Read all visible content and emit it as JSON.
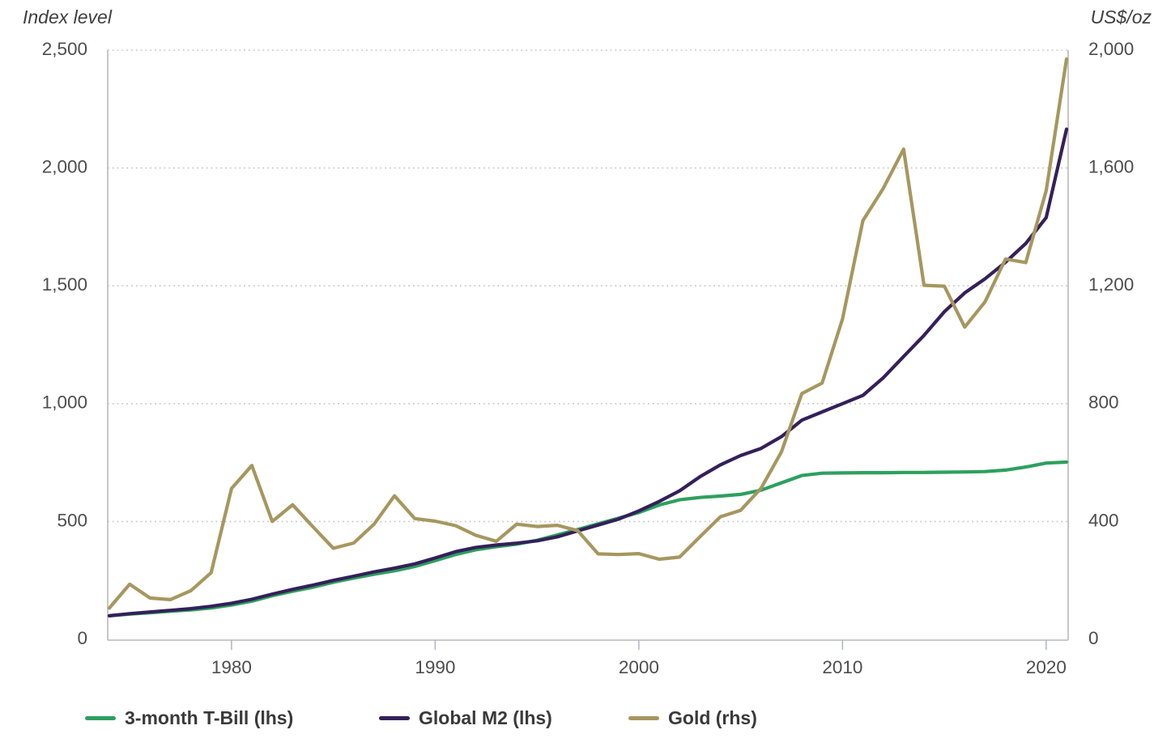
{
  "chart_data": {
    "type": "line",
    "title": "",
    "left_axis": {
      "label": "Index level",
      "min": 0,
      "max": 2500,
      "ticks": [
        {
          "label": "0",
          "value": 0
        },
        {
          "label": "500",
          "value": 500
        },
        {
          "label": "1,000",
          "value": 1000
        },
        {
          "label": "1,500",
          "value": 1500
        },
        {
          "label": "2,000",
          "value": 2000
        },
        {
          "label": "2,500",
          "value": 2500
        }
      ]
    },
    "right_axis": {
      "label": "US$/oz",
      "min": 0,
      "max": 2000,
      "ticks": [
        {
          "label": "0",
          "value": 0
        },
        {
          "label": "400",
          "value": 400
        },
        {
          "label": "800",
          "value": 800
        },
        {
          "label": "1,200",
          "value": 1200
        },
        {
          "label": "1,600",
          "value": 1600
        },
        {
          "label": "2,000",
          "value": 2000
        }
      ]
    },
    "x_axis": {
      "tick_labels": [
        {
          "label": "1980",
          "year": 1980
        },
        {
          "label": "1990",
          "year": 1990
        },
        {
          "label": "2000",
          "year": 2000
        },
        {
          "label": "2010",
          "year": 2010
        },
        {
          "label": "2020",
          "year": 2020
        }
      ],
      "grid": false
    },
    "years": [
      1973,
      1974,
      1975,
      1976,
      1977,
      1978,
      1979,
      1980,
      1981,
      1982,
      1983,
      1984,
      1985,
      1986,
      1987,
      1988,
      1989,
      1990,
      1991,
      1992,
      1993,
      1994,
      1995,
      1996,
      1997,
      1998,
      1999,
      2000,
      2001,
      2002,
      2003,
      2004,
      2005,
      2006,
      2007,
      2008,
      2009,
      2010,
      2011,
      2012,
      2013,
      2014,
      2015,
      2016,
      2017,
      2018,
      2019,
      2020
    ],
    "series": [
      {
        "key": "tbill",
        "name": "3-month T-Bill (lhs)",
        "axis": "left",
        "color": "#2da05f",
        "values": [
          100,
          107,
          113,
          119,
          125,
          133,
          146,
          162,
          185,
          204,
          221,
          242,
          260,
          276,
          291,
          309,
          334,
          360,
          380,
          393,
          404,
          420,
          443,
          466,
          490,
          514,
          538,
          570,
          592,
          602,
          608,
          615,
          633,
          664,
          695,
          705,
          706,
          707,
          707,
          708,
          708,
          709,
          710,
          712,
          718,
          731,
          748,
          752
        ]
      },
      {
        "key": "m2",
        "name": "Global M2 (lhs)",
        "axis": "left",
        "color": "#34205a",
        "values": [
          100,
          109,
          116,
          123,
          130,
          140,
          153,
          170,
          192,
          212,
          230,
          250,
          268,
          286,
          302,
          320,
          345,
          372,
          390,
          400,
          408,
          418,
          435,
          460,
          485,
          510,
          545,
          585,
          630,
          690,
          740,
          780,
          810,
          860,
          930,
          965,
          1000,
          1035,
          1110,
          1200,
          1290,
          1390,
          1470,
          1530,
          1600,
          1680,
          1790,
          2165
        ]
      },
      {
        "key": "gold",
        "name": "Gold (rhs)",
        "axis": "right",
        "color": "#a6975f",
        "values": [
          106,
          187,
          140,
          135,
          165,
          226,
          512,
          590,
          400,
          457,
          382,
          309,
          327,
          391,
          487,
          410,
          401,
          386,
          353,
          333,
          391,
          383,
          387,
          369,
          290,
          288,
          291,
          272,
          279,
          348,
          416,
          438,
          513,
          636,
          834,
          870,
          1088,
          1421,
          1531,
          1664,
          1202,
          1199,
          1060,
          1146,
          1291,
          1279,
          1523,
          1970
        ]
      }
    ],
    "legend_position": "bottom",
    "grid_horizontal": true
  },
  "colors": {
    "background": "#ffffff",
    "gridline": "#c7c7c7",
    "axis_line": "#b9b9b9",
    "x_tick_mark": "#a9b6c9",
    "tick_text": "#4d4d4d",
    "axis_title_text": "#3f3f3f",
    "legend_text": "#3a3a3a"
  }
}
